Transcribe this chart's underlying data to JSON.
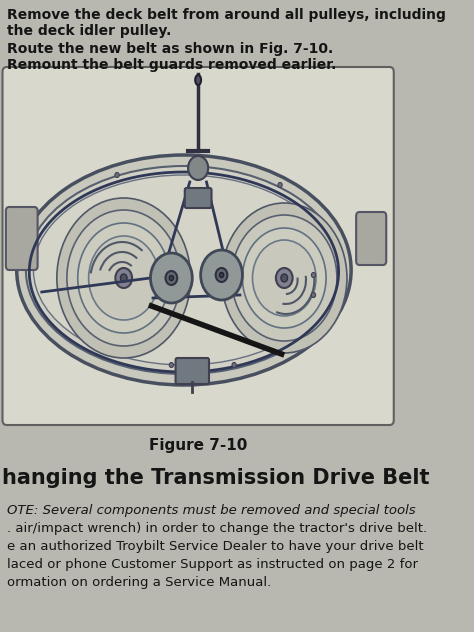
{
  "bg_color": "#b8b8b0",
  "text_color": "#151515",
  "top_text_lines": [
    "Remove the deck belt from around all pulleys, including",
    "the deck idler pulley.",
    "Route the new belt as shown in Fig. 7-10.",
    "Remount the belt guards removed earlier."
  ],
  "figure_caption": "Figure 7-10",
  "section_title": "hanging the Transmission Drive Belt",
  "bottom_text_lines": [
    "OTE: Several components must be removed and special tools",
    ". air/impact wrench) in order to change the tractor's drive belt.",
    "e an authorized Troybilt Service Dealer to have your drive belt",
    "laced or phone Customer Support as instructed on page 2 for",
    "ormation on ordering a Service Manual."
  ],
  "diagram_bg": "#d8d8cc",
  "deck_line_color": "#505870",
  "belt_color": "#303858",
  "pulley_fill": "#909898",
  "box_edge": "#606060"
}
